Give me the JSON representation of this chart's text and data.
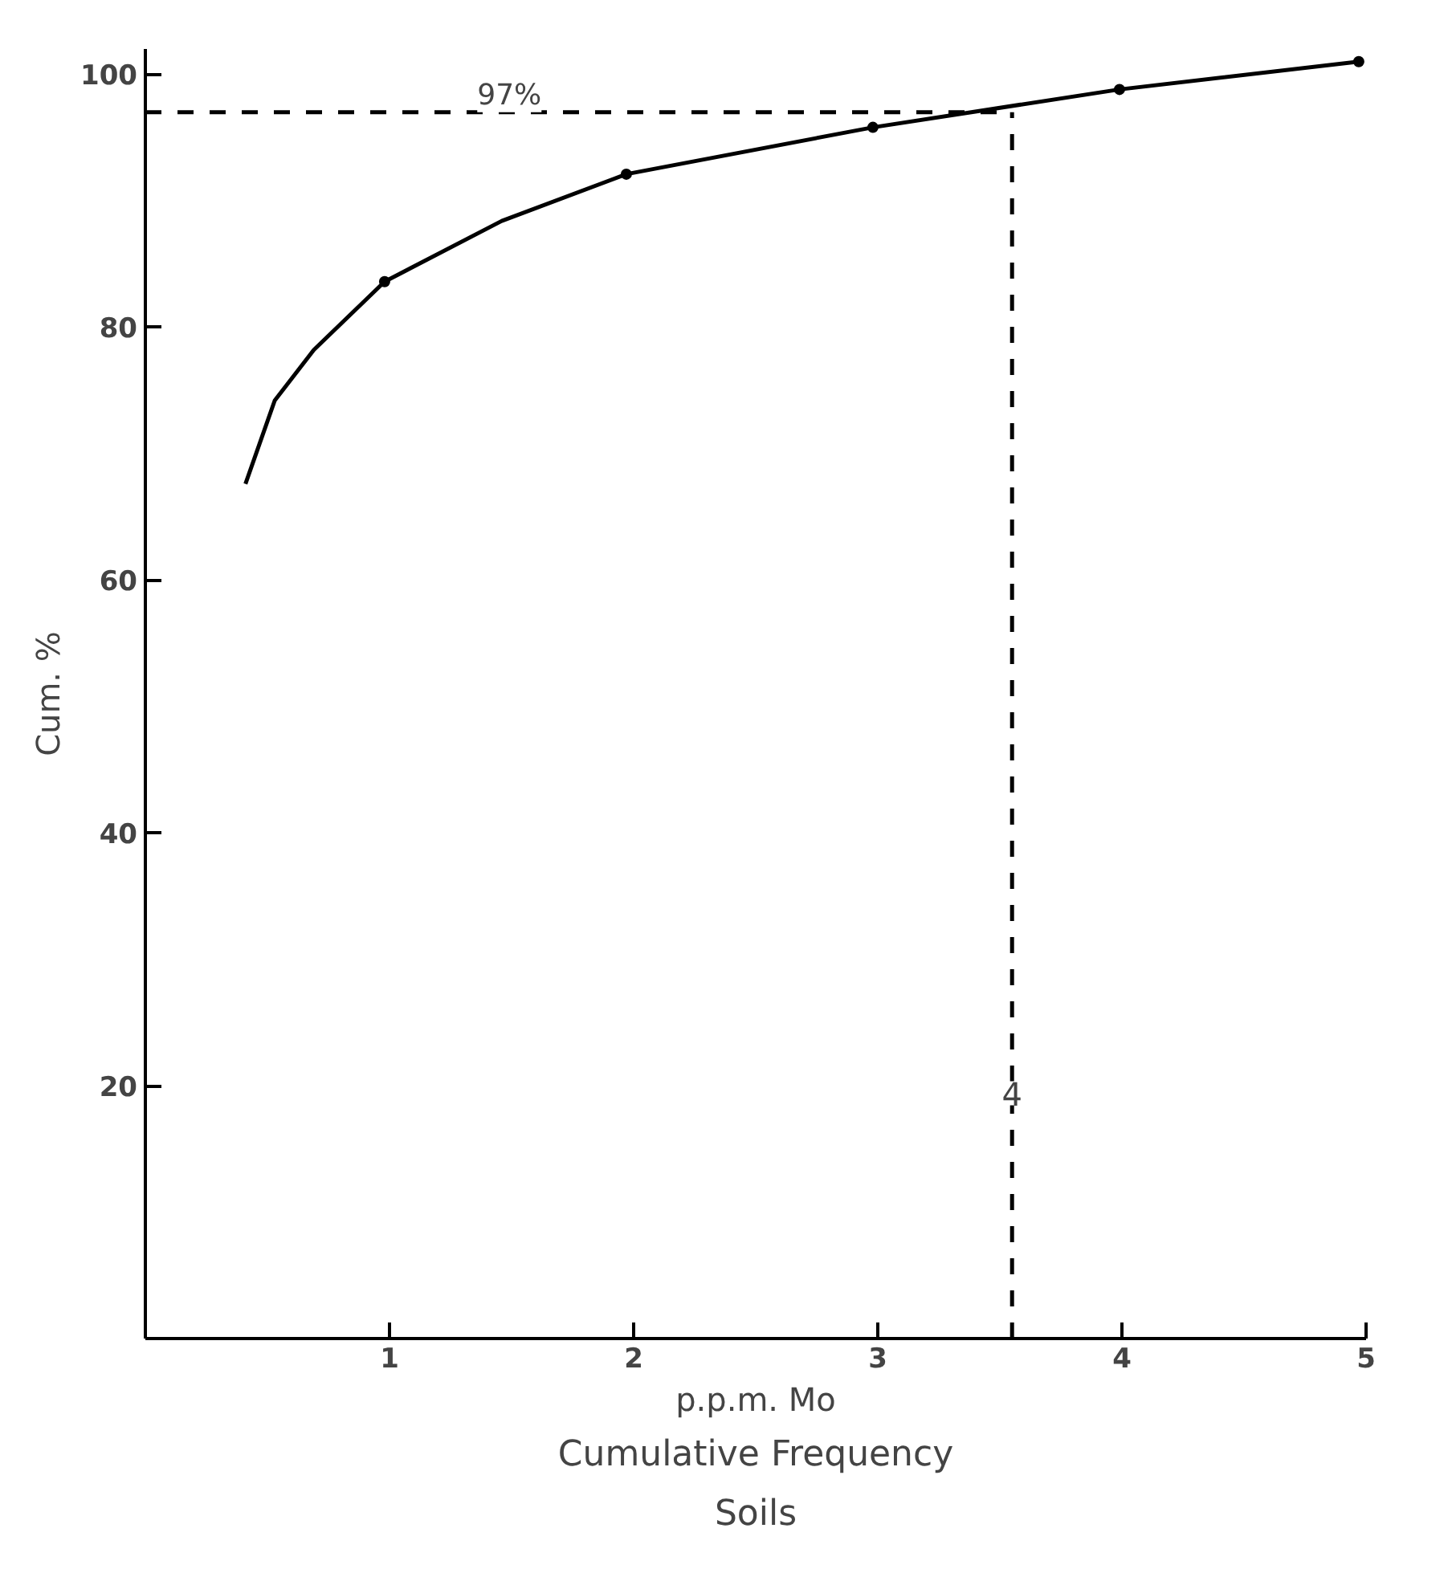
{
  "chart_data": {
    "type": "line",
    "title": "Cumulative Frequency\nSoils",
    "xlabel": "p.p.m. Mo",
    "ylabel": "Cum. %",
    "series": [
      {
        "color": "#000000",
        "marker": "none",
        "x": [
          0.41,
          0.53,
          0.69,
          0.98,
          1.46,
          1.97,
          2.98,
          3.99,
          4.97
        ],
        "values": [
          67.6,
          74.2,
          78.2,
          83.6,
          88.4,
          92.1,
          95.8,
          98.8,
          101
        ]
      },
      {
        "type": "scatter",
        "color": "#000000",
        "marker": "circle",
        "x": [
          0.98,
          1.97,
          2.98,
          3.99,
          4.97
        ],
        "values": [
          83.6,
          92.1,
          95.8,
          98.8,
          101
        ]
      }
    ],
    "xlim": [
      0,
      5
    ],
    "ylim": [
      0,
      102
    ],
    "xticks": [
      1,
      2,
      3,
      4,
      5
    ],
    "yticks": [
      20,
      40,
      60,
      80,
      100
    ],
    "grid": false,
    "ref_lines": [
      {
        "axis": "y",
        "value": 97,
        "label": "97%",
        "line_style": "dashed",
        "color": "#000000"
      },
      {
        "axis": "x",
        "value": 3.55,
        "label": "4",
        "line_style": "dashed",
        "color": "#000000"
      }
    ]
  }
}
